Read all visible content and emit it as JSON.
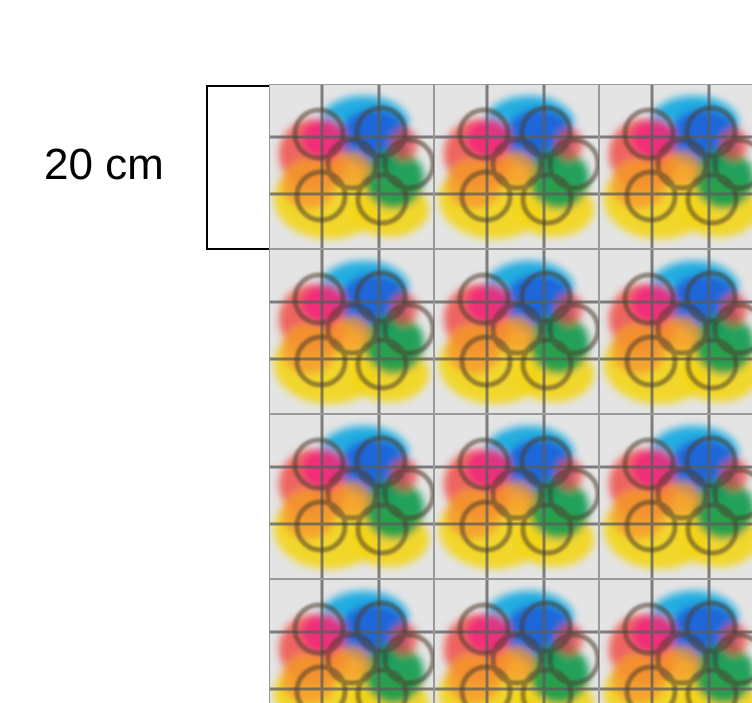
{
  "scale": {
    "label": "20 cm"
  },
  "pattern": {
    "columns": 3,
    "rows": 4,
    "colors": {
      "background": "#e4e4e4",
      "grid": "#5a5a5a",
      "red": "#f0453f",
      "pink": "#f2297a",
      "blue": "#1f63d8",
      "cyan": "#12a7e0",
      "green": "#109a4e",
      "yellow": "#f3d51a",
      "orange": "#f59a2e",
      "ring": "#4a3a2a"
    }
  }
}
